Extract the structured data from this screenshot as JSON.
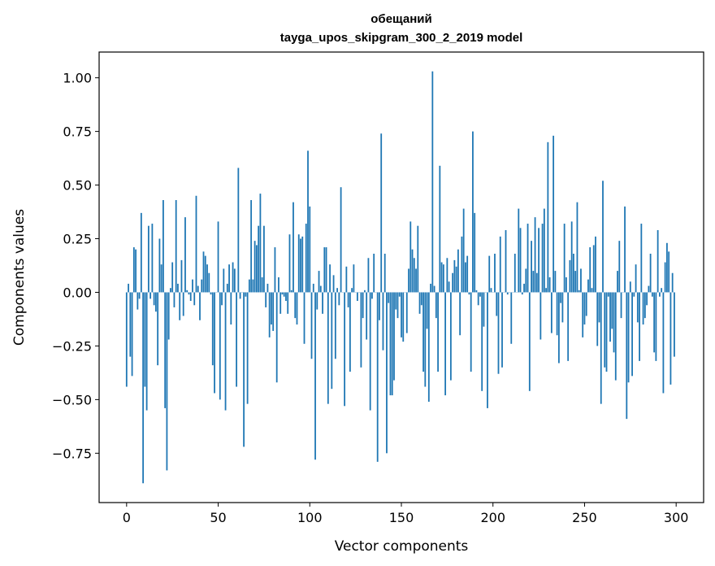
{
  "chart_data": {
    "type": "bar",
    "title": "обещаний",
    "subtitle": "tayga_upos_skipgram_300_2_2019 model",
    "xlabel": "Vector components",
    "ylabel": "Components values",
    "xlim": [
      -15,
      315
    ],
    "ylim": [
      -0.98,
      1.12
    ],
    "xticks": [
      0,
      50,
      100,
      150,
      200,
      250,
      300
    ],
    "xtick_labels": [
      "0",
      "50",
      "100",
      "150",
      "200",
      "250",
      "300"
    ],
    "yticks": [
      -0.75,
      -0.5,
      -0.25,
      0,
      0.25,
      0.5,
      0.75,
      1.0
    ],
    "ytick_labels": [
      "−0.75",
      "−0.50",
      "−0.25",
      "0.00",
      "0.25",
      "0.50",
      "0.75",
      "1.00"
    ],
    "grid": false,
    "color": "#1f77b4",
    "values": [
      -0.44,
      0.04,
      -0.3,
      -0.39,
      0.21,
      0.2,
      -0.08,
      -0.03,
      0.37,
      -0.89,
      -0.44,
      -0.55,
      0.31,
      -0.03,
      0.32,
      -0.06,
      -0.09,
      -0.34,
      0.25,
      0.13,
      0.43,
      -0.54,
      -0.83,
      -0.22,
      0.02,
      0.14,
      -0.07,
      0.43,
      0.04,
      -0.13,
      0.15,
      -0.11,
      0.35,
      0.01,
      -0.01,
      -0.04,
      0.06,
      -0.06,
      0.45,
      0.03,
      -0.13,
      0.06,
      0.19,
      0.17,
      0.13,
      0.09,
      -0.01,
      -0.34,
      -0.47,
      0.0,
      0.33,
      -0.5,
      -0.06,
      0.11,
      -0.55,
      0.04,
      0.13,
      -0.15,
      0.14,
      0.11,
      -0.44,
      0.58,
      -0.03,
      0.0,
      -0.72,
      -0.02,
      -0.52,
      0.06,
      0.43,
      0.06,
      0.24,
      0.22,
      0.31,
      0.46,
      0.07,
      0.31,
      -0.07,
      0.04,
      -0.21,
      -0.15,
      -0.18,
      0.21,
      -0.42,
      0.07,
      -0.1,
      -0.01,
      -0.02,
      -0.04,
      -0.1,
      0.27,
      0.01,
      0.42,
      -0.12,
      -0.15,
      0.27,
      0.25,
      0.26,
      -0.24,
      0.32,
      0.66,
      0.4,
      -0.31,
      0.04,
      -0.78,
      -0.08,
      0.1,
      0.03,
      -0.1,
      0.21,
      0.21,
      -0.52,
      0.13,
      -0.45,
      0.08,
      -0.31,
      0.02,
      -0.06,
      0.49,
      0.0,
      -0.53,
      0.12,
      -0.07,
      -0.37,
      0.02,
      0.13,
      0.0,
      -0.04,
      0.0,
      -0.35,
      -0.12,
      0.01,
      -0.22,
      0.16,
      -0.55,
      -0.03,
      0.18,
      0.0,
      -0.79,
      -0.13,
      0.74,
      -0.27,
      0.18,
      -0.75,
      -0.05,
      -0.48,
      -0.48,
      -0.41,
      -0.08,
      -0.12,
      -0.02,
      -0.21,
      -0.23,
      0.0,
      -0.19,
      0.11,
      0.33,
      0.2,
      0.16,
      0.11,
      0.31,
      -0.1,
      -0.06,
      -0.37,
      -0.44,
      -0.17,
      -0.51,
      0.04,
      1.03,
      0.03,
      -0.12,
      -0.37,
      0.59,
      0.14,
      0.13,
      -0.48,
      0.16,
      0.05,
      -0.41,
      0.09,
      0.15,
      0.12,
      0.2,
      -0.2,
      0.26,
      0.39,
      0.14,
      0.17,
      -0.01,
      -0.37,
      0.75,
      0.37,
      0.01,
      -0.06,
      -0.02,
      -0.46,
      -0.16,
      0.0,
      -0.54,
      0.17,
      0.02,
      0.0,
      0.18,
      -0.11,
      -0.38,
      0.26,
      -0.35,
      0.0,
      0.29,
      -0.01,
      0.0,
      -0.24,
      0.0,
      0.18,
      0.0,
      0.39,
      0.3,
      -0.01,
      0.04,
      0.11,
      0.32,
      -0.46,
      0.24,
      0.1,
      0.35,
      0.09,
      0.3,
      -0.22,
      0.32,
      0.39,
      0.02,
      0.7,
      0.07,
      -0.19,
      0.73,
      0.1,
      -0.2,
      -0.33,
      -0.05,
      -0.14,
      0.32,
      0.07,
      -0.32,
      0.15,
      0.33,
      0.18,
      0.1,
      0.42,
      0.01,
      0.11,
      -0.21,
      -0.15,
      -0.11,
      0.06,
      0.21,
      0.02,
      0.22,
      0.26,
      -0.25,
      -0.14,
      -0.52,
      0.52,
      -0.35,
      -0.37,
      -0.02,
      -0.23,
      -0.17,
      -0.28,
      -0.41,
      0.1,
      0.24,
      -0.12,
      0.0,
      0.4,
      -0.59,
      -0.42,
      0.05,
      -0.39,
      -0.02,
      0.13,
      -0.14,
      -0.32,
      0.32,
      -0.15,
      -0.12,
      -0.06,
      0.03,
      0.18,
      -0.02,
      -0.28,
      -0.32,
      0.29,
      -0.02,
      0.02,
      -0.47,
      0.14,
      0.23,
      0.19,
      -0.43,
      0.09,
      -0.3
    ]
  }
}
